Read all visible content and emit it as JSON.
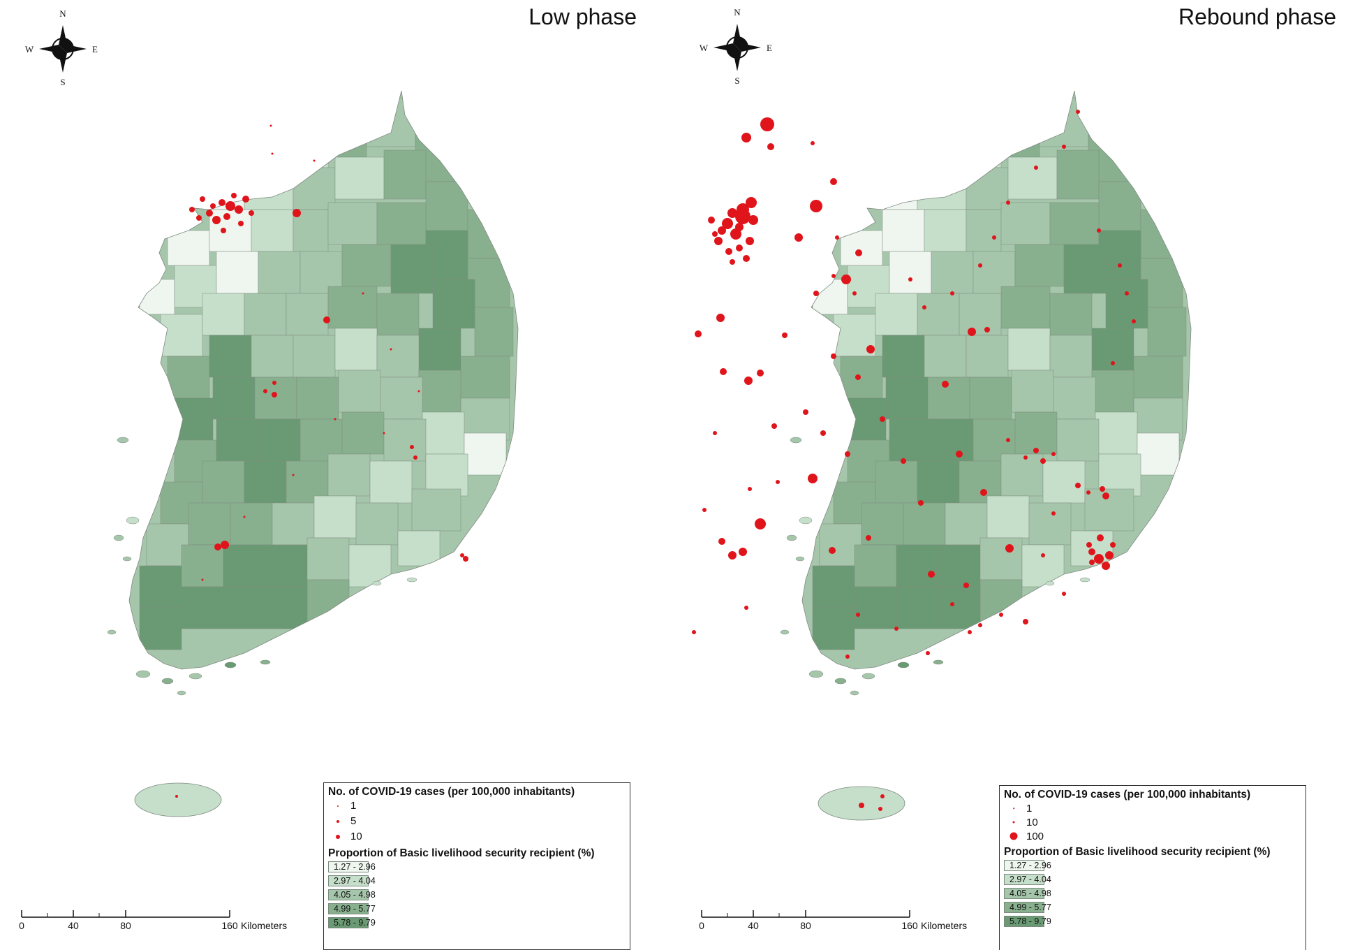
{
  "palette": {
    "class_colors": [
      "#eef6ef",
      "#c6dfca",
      "#a6c6ab",
      "#88b08e",
      "#6a9a73"
    ],
    "case_dot_color": "#e0141b",
    "boundary_color": "#7e8a80",
    "background": "#ffffff"
  },
  "compass": {
    "north": "N",
    "south": "S",
    "east": "E",
    "west": "W",
    "icon": "north-arrow-compass-icon"
  },
  "panels": [
    {
      "id": "low",
      "title": "Low phase",
      "legend": {
        "cases_title": "No. of COVID-19 cases (per 100,000 inhabitants)",
        "case_levels": [
          {
            "label": "1",
            "value": 1
          },
          {
            "label": "5",
            "value": 5
          },
          {
            "label": "10",
            "value": 10
          }
        ],
        "proportion_title": "Proportion of Basic livelihood security recipient (%)",
        "classes": [
          {
            "label": "1.27 - 2.96"
          },
          {
            "label": "2.97 - 4.04"
          },
          {
            "label": "4.05 - 4.98"
          },
          {
            "label": "4.99 - 5.77"
          },
          {
            "label": "5.78 - 9.79"
          }
        ]
      },
      "scale": {
        "ticks": [
          "0",
          "40",
          "80",
          "160"
        ],
        "tick_values": [
          0,
          40,
          80,
          160
        ],
        "unit": "Kilometers"
      }
    },
    {
      "id": "rebound",
      "title": "Rebound phase",
      "legend": {
        "cases_title": "No. of COVID-19 cases (per 100,000 inhabitants)",
        "case_levels": [
          {
            "label": "1",
            "value": 1
          },
          {
            "label": "10",
            "value": 10
          },
          {
            "label": "100",
            "value": 100
          }
        ],
        "proportion_title": "Proportion of Basic livelihood security recipient (%)",
        "classes": [
          {
            "label": "1.27 - 2.96"
          },
          {
            "label": "2.97 - 4.04"
          },
          {
            "label": "4.05 - 4.98"
          },
          {
            "label": "4.99 - 5.77"
          },
          {
            "label": "5.78 - 9.79"
          }
        ]
      },
      "scale": {
        "ticks": [
          "0",
          "40",
          "80",
          "160"
        ],
        "tick_values": [
          0,
          40,
          80,
          160
        ],
        "unit": "Kilometers"
      }
    }
  ]
}
